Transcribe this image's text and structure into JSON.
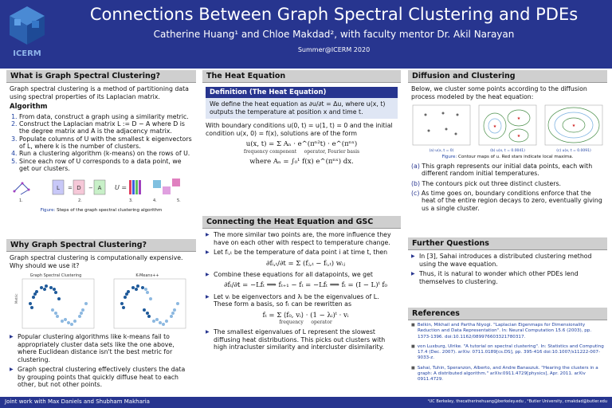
{
  "header": {
    "logo_text": "ICERM",
    "title": "Connections Between Graph Spectral Clustering and PDEs",
    "authors": "Catherine Huang¹ and Chloe Makdad², with faculty mentor Dr. Akil Narayan",
    "venue": "Summer@ICERM 2020"
  },
  "col1": {
    "s1_title": "What is Graph Spectral Clustering?",
    "s1_intro": "Graph spectral clustering is a method of partitioning data using spectral properties of its Laplacian matrix.",
    "alg_title": "Algorithm",
    "alg_steps": [
      "From data, construct a graph using a similarity metric.",
      "Construct the Laplacian matrix L := D − A where D is the degree matrix and A is the adjacency matrix.",
      "Populate columns of U with the smallest k eigenvectors of L, where k is the number of clusters.",
      "Run a clustering algorithm (k-means) on the rows of U.",
      "Since each row of U corresponds to a data point, we get our clusters."
    ],
    "fig1_labels": [
      "1.",
      "2.",
      "3.",
      "4.",
      "5."
    ],
    "fig1_L": "L",
    "fig1_D": "D",
    "fig1_A": "A",
    "fig1_U": "U =",
    "fig1_caption_label": "Figure:",
    "fig1_caption": "Steps of the graph spectral clustering algorithm",
    "s2_title": "Why Graph Spectral Clustering?",
    "s2_intro": "Graph spectral clustering is computationally expensive. Why should we use it?",
    "plot_left_title": "Graph Spectral Clustering",
    "plot_right_title": "K-Means++",
    "plot_ylabel": "Metric",
    "s2_bullets": [
      "Popular clustering algorithms like k-means fail to appropriately cluster data sets like the one above, where Euclidean distance isn't the best metric for clustering.",
      "Graph spectral clustering effectively clusters the data by grouping points that quickly diffuse heat to each other, but not other points."
    ]
  },
  "col2": {
    "s1_title": "The Heat Equation",
    "def_title": "Definition (The Heat Equation)",
    "def_body": "We define the heat equation as ∂u/∂t = Δu, where u(x, t) outputs the temperature at position x and time t.",
    "bc_text": "With boundary conditions u(0, t) = u(1, t) = 0 and the initial condition u(x, 0) = f(x), solutions are of the form",
    "eq1": "u(x, t) = Σ Aₙ · e^(πⁿ²t) · e^(πⁿˣ)",
    "eq1_sub1": "frequency component",
    "eq1_sub2": "operator, Fourier basis",
    "eq2": "where Aₙ = ∫₀¹ f(x) e^(πⁿˣ) dx.",
    "s2_title": "Connecting the Heat Equation and GSC",
    "b1": "The more similar two points are, the more influence they have on each other with respect to temperature change.",
    "b2": "Let fᵢ,ₜ be the temperature of data point i at time t, then",
    "eq3": "∂fᵢ,ₜ/∂t = Σ (fⱼ,ₜ − fᵢ,ₜ) wᵢⱼ",
    "b3": "Combine these equations for all datapoints, we get",
    "eq4": "∂fₜ/∂t = −Lfₜ ⟹ fₜ₊₁ − fₜ = −Lfₜ ⟹ fₜ = (I − L)ᵗ f₀",
    "b4": "Let vᵢ be eigenvectors and λᵢ be the eigenvalues of L. These form a basis, so fₜ can be rewritten as",
    "eq5": "fₜ = Σ ⟨f₀, vᵢ⟩ · (1 − λᵢ)ᵗ · vᵢ",
    "eq5_sub1": "frequency",
    "eq5_sub2": "operator",
    "b5": "The smallest eigenvalues of L represent the slowest diffusing heat distributions. This picks out clusters with high intracluster similarity and intercluster disimilarity."
  },
  "col3": {
    "s1_title": "Diffusion and Clustering",
    "s1_intro": "Below, we cluster some points according to the diffusion process modeled by the heat equation:",
    "fig_sub": [
      "(a) u(x, t = 0)",
      "(b) u(x, t = 0.0041)",
      "(c) u(x, t = 0.0091)"
    ],
    "fig_caption_label": "Figure:",
    "fig_caption": "Contour maps of u. Red stars indicate local maxima.",
    "items": [
      {
        "tag": "(a)",
        "text": "This graph represents our initial data points, each with different random initial temperatures."
      },
      {
        "tag": "(b)",
        "text": "The contours pick out three distinct clusters."
      },
      {
        "tag": "(c)",
        "text": "As time goes on, boundary conditions enforce that the heat of the entire region decays to zero, eventually giving us a single cluster."
      }
    ],
    "s2_title": "Further Questions",
    "q_bullets": [
      "In [3], Sahai introduces a distributed clustering method using the wave equation.",
      "Thus, it is natural to wonder which other PDEs lend themselves to clustering."
    ],
    "s3_title": "References",
    "refs": [
      "Belkin, Mikhail and Partha Niyogi. \"Laplacian Eigenmaps for Dimensionality Reduction and Data Representation\". In: Neural Computation 15.6 (2003), pp. 1373-1396. doi:10.1162/089976603321780317.",
      "von Luxburg, Ulrike. \"A tutorial on spectral clustering\". In: Statistics and Computing 17.4 (Dec. 2007). arXiv: 0711.0189[cs.DS], pp. 395-416 doi:10.1007/s11222-007-9033-z.",
      "Sahai, Tuhin, Speranzon, Alberto, and Andre Banaszuk. \"Hearing the clusters in a graph: A distributed algorithm.\" arXiv:0911.4729[physics], Apr. 2011. arXiv 0911.4729."
    ]
  },
  "footer": {
    "left": "Joint work with Max Daniels and Shubham Makharia",
    "right": "¹UC Berkeley, thecatherinehuang@berkeley.edu , ²Butler University, cmakdad@butler.edu"
  }
}
